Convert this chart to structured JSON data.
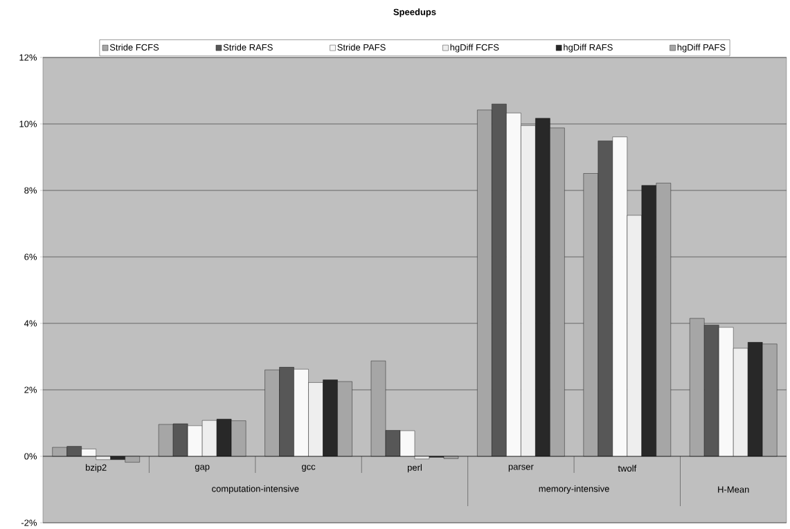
{
  "chart_data": {
    "type": "bar",
    "title": "Speedups",
    "categories": [
      "bzip2",
      "gap",
      "gcc",
      "perl",
      "parser",
      "twolf",
      "H-Mean"
    ],
    "series": [
      {
        "name": "Stride FCFS",
        "color": "#a6a6a6",
        "values": [
          0.27,
          0.96,
          2.6,
          2.87,
          10.42,
          8.51,
          4.15
        ]
      },
      {
        "name": "Stride RAFS",
        "color": "#575757",
        "values": [
          0.3,
          0.98,
          2.68,
          0.78,
          10.6,
          9.49,
          3.95
        ]
      },
      {
        "name": "Stride PAFS",
        "color": "#f9f9f9",
        "values": [
          0.22,
          0.92,
          2.62,
          0.77,
          10.33,
          9.61,
          3.88
        ]
      },
      {
        "name": "hgDiff FCFS",
        "color": "#eeeeee",
        "values": [
          -0.1,
          1.08,
          2.22,
          -0.08,
          9.95,
          7.25,
          3.25
        ]
      },
      {
        "name": "hgDiff RAFS",
        "color": "#282828",
        "values": [
          -0.1,
          1.12,
          2.3,
          -0.03,
          10.17,
          8.15,
          3.43
        ]
      },
      {
        "name": "hgDiff PAFS",
        "color": "#a6a6a6",
        "values": [
          -0.18,
          1.07,
          2.25,
          -0.07,
          9.88,
          8.22,
          3.38
        ]
      }
    ],
    "annotations": [
      "computation-intensive",
      "memory-intensive"
    ],
    "ylim": [
      -2,
      12
    ],
    "yticks": [
      {
        "value": -2,
        "label": "-2%"
      },
      {
        "value": 0,
        "label": "0%"
      },
      {
        "value": 2,
        "label": "2%"
      },
      {
        "value": 4,
        "label": "4%"
      },
      {
        "value": 6,
        "label": "6%"
      },
      {
        "value": 8,
        "label": "8%"
      },
      {
        "value": 10,
        "label": "10%"
      },
      {
        "value": 12,
        "label": "12%"
      }
    ],
    "grid": "y",
    "legend": "top"
  }
}
